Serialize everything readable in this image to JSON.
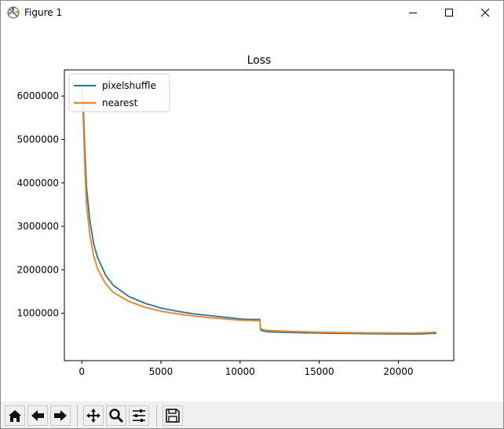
{
  "window": {
    "title": "Figure 1",
    "icons": [
      "matplotlib-logo-icon",
      "minimize-icon",
      "maximize-icon",
      "close-icon"
    ]
  },
  "toolbar": {
    "buttons": [
      "home-icon",
      "back-arrow-icon",
      "forward-arrow-icon",
      "pan-icon",
      "zoom-icon",
      "subplots-config-icon",
      "save-icon"
    ]
  },
  "chart_data": {
    "type": "line",
    "title": "Loss",
    "xlabel": "",
    "ylabel": "",
    "xlim": [
      -1100,
      23500
    ],
    "ylim": [
      -90000,
      6600000
    ],
    "xticks": [
      0,
      5000,
      10000,
      15000,
      20000
    ],
    "xtick_labels": [
      "0",
      "5000",
      "10000",
      "15000",
      "20000"
    ],
    "yticks": [
      1000000,
      2000000,
      3000000,
      4000000,
      5000000,
      6000000
    ],
    "ytick_labels": [
      "1000000",
      "2000000",
      "3000000",
      "4000000",
      "5000000",
      "6000000"
    ],
    "grid": false,
    "legend": "upper-left",
    "series": [
      {
        "name": "pixelshuffle",
        "color": "#1f77b4",
        "x": [
          0,
          100,
          200,
          300,
          500,
          750,
          1000,
          1500,
          2000,
          3000,
          4000,
          5000,
          6000,
          7000,
          8000,
          9000,
          10000,
          10500,
          11000,
          11250,
          11300,
          11400,
          11600,
          12000,
          13000,
          14000,
          15000,
          16000,
          17000,
          18000,
          19000,
          20000,
          21000,
          21500,
          22000,
          22400
        ],
        "y": [
          6300000,
          5700000,
          4700000,
          3900000,
          3150000,
          2600000,
          2280000,
          1880000,
          1640000,
          1380000,
          1230000,
          1120000,
          1050000,
          990000,
          950000,
          910000,
          870000,
          860000,
          860000,
          860000,
          620000,
          600000,
          580000,
          570000,
          560000,
          550000,
          545000,
          540000,
          535000,
          530000,
          527000,
          524000,
          522000,
          525000,
          535000,
          540000
        ]
      },
      {
        "name": "nearest",
        "color": "#ff7f0e",
        "x": [
          0,
          100,
          200,
          300,
          500,
          750,
          1000,
          1500,
          2000,
          3000,
          4000,
          5000,
          6000,
          7000,
          8000,
          9000,
          10000,
          10500,
          11000,
          11250,
          11300,
          11400,
          11600,
          12000,
          13000,
          14000,
          15000,
          16000,
          17000,
          18000,
          19000,
          20000,
          21000,
          21500,
          22000,
          22400
        ],
        "y": [
          6200000,
          5400000,
          4300000,
          3500000,
          2820000,
          2320000,
          2030000,
          1680000,
          1480000,
          1270000,
          1140000,
          1050000,
          990000,
          940000,
          900000,
          870000,
          840000,
          835000,
          830000,
          830000,
          650000,
          630000,
          610000,
          600000,
          585000,
          575000,
          565000,
          560000,
          555000,
          550000,
          547000,
          545000,
          543000,
          548000,
          560000,
          565000
        ]
      }
    ]
  }
}
